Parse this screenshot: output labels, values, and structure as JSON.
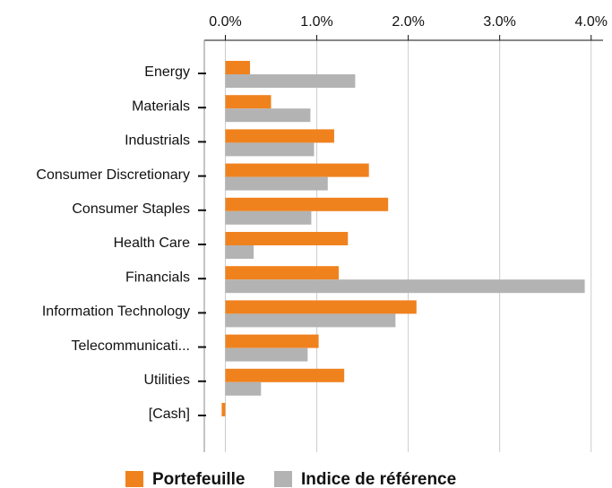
{
  "chart_data": {
    "type": "hbar",
    "categories": [
      "Energy",
      "Materials",
      "Industrials",
      "Consumer Discretionary",
      "Consumer Staples",
      "Health Care",
      "Financials",
      "Information Technology",
      "Telecommunicati...",
      "Utilities",
      "[Cash]"
    ],
    "series": [
      {
        "name": "Portefeuille",
        "color": "#f0821e",
        "values": [
          0.27,
          0.5,
          1.19,
          1.57,
          1.78,
          1.34,
          1.24,
          2.09,
          1.02,
          1.3,
          -0.04
        ]
      },
      {
        "name": "Indice de référence",
        "color": "#b3b3b3",
        "values": [
          1.42,
          0.93,
          0.97,
          1.12,
          0.94,
          0.31,
          3.93,
          1.86,
          0.9,
          0.39,
          0
        ]
      }
    ],
    "xlim": [
      -0.23,
      4.13
    ],
    "xticks": [
      {
        "value": 0,
        "label": "0.0%"
      },
      {
        "value": 1,
        "label": "1.0%"
      },
      {
        "value": 2,
        "label": "2.0%"
      },
      {
        "value": 3,
        "label": "3.0%"
      },
      {
        "value": 4,
        "label": "4.0%"
      }
    ],
    "grid": true,
    "legend": "bottom"
  }
}
